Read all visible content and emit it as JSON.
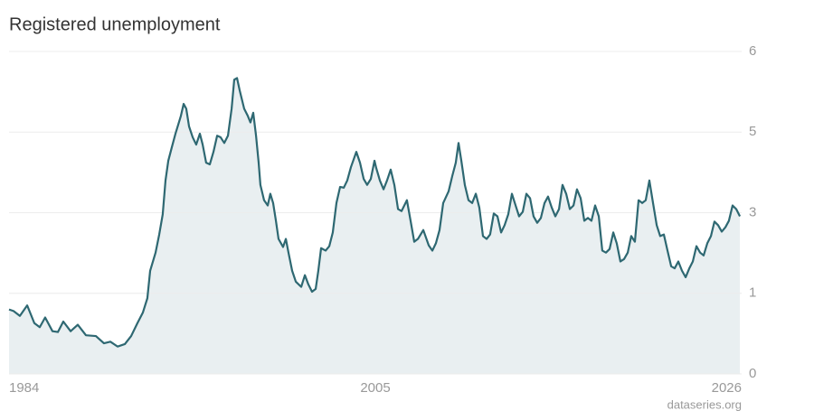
{
  "chart_data": {
    "type": "line",
    "title": "Registered unemployment",
    "source": "dataseries.org",
    "x": [
      1984.0,
      1984.26,
      1984.62,
      1985.04,
      1985.45,
      1985.76,
      1986.07,
      1986.49,
      1986.8,
      1987.11,
      1987.53,
      1987.94,
      1988.41,
      1988.98,
      1989.44,
      1989.81,
      1990.22,
      1990.64,
      1991.0,
      1991.36,
      1991.67,
      1991.93,
      1992.09,
      1992.4,
      1992.61,
      1992.81,
      1992.97,
      1993.13,
      1993.33,
      1993.54,
      1993.85,
      1994.01,
      1994.16,
      1994.32,
      1994.53,
      1994.73,
      1994.94,
      1995.1,
      1995.3,
      1995.51,
      1995.72,
      1995.93,
      1996.13,
      1996.34,
      1996.55,
      1996.76,
      1996.91,
      1997.07,
      1997.22,
      1997.48,
      1997.69,
      1997.84,
      1998.0,
      1998.16,
      1998.31,
      1998.41,
      1998.62,
      1998.83,
      1998.98,
      1999.14,
      1999.3,
      1999.45,
      1999.71,
      1999.87,
      2000.02,
      2000.23,
      2000.44,
      2000.75,
      2000.96,
      2001.16,
      2001.37,
      2001.58,
      2001.73,
      2001.89,
      2002.15,
      2002.36,
      2002.56,
      2002.77,
      2002.98,
      2003.19,
      2003.39,
      2003.6,
      2003.91,
      2004.12,
      2004.33,
      2004.53,
      2004.74,
      2004.95,
      2005.05,
      2005.26,
      2005.47,
      2005.67,
      2005.88,
      2006.09,
      2006.3,
      2006.5,
      2006.81,
      2007.02,
      2007.23,
      2007.44,
      2007.75,
      2008.06,
      2008.27,
      2008.47,
      2008.68,
      2008.89,
      2009.2,
      2009.41,
      2009.61,
      2009.77,
      2009.93,
      2010.13,
      2010.34,
      2010.55,
      2010.76,
      2010.96,
      2011.17,
      2011.38,
      2011.58,
      2011.79,
      2012.0,
      2012.21,
      2012.41,
      2012.62,
      2012.83,
      2013.04,
      2013.24,
      2013.45,
      2013.66,
      2013.87,
      2014.07,
      2014.28,
      2014.49,
      2014.7,
      2014.9,
      2015.11,
      2015.32,
      2015.53,
      2015.73,
      2015.94,
      2016.15,
      2016.36,
      2016.56,
      2016.77,
      2016.98,
      2017.19,
      2017.39,
      2017.6,
      2017.81,
      2018.01,
      2018.22,
      2018.43,
      2018.64,
      2018.84,
      2019.05,
      2019.26,
      2019.47,
      2019.67,
      2019.88,
      2020.09,
      2020.3,
      2020.5,
      2020.71,
      2020.92,
      2021.13,
      2021.33,
      2021.54,
      2021.75,
      2021.96,
      2022.16,
      2022.37,
      2022.58,
      2022.79,
      2022.99,
      2023.2,
      2023.41,
      2023.62,
      2023.82,
      2024.03,
      2024.24,
      2024.44,
      2024.65,
      2024.86,
      2025.07,
      2025.27,
      2025.48,
      2025.69,
      2025.9
    ],
    "series": [
      {
        "color": "#2e6872",
        "fill": "#e9eff1",
        "values": [
          0.8,
          0.78,
          0.72,
          0.85,
          0.63,
          0.58,
          0.7,
          0.53,
          0.52,
          0.65,
          0.53,
          0.61,
          0.48,
          0.47,
          0.38,
          0.4,
          0.34,
          0.37,
          0.47,
          0.63,
          0.76,
          0.94,
          1.56,
          2.01,
          2.46,
          2.96,
          3.8,
          4.29,
          4.62,
          4.96,
          5.2,
          5.35,
          5.29,
          5.07,
          4.87,
          4.69,
          4.96,
          4.69,
          4.24,
          4.2,
          4.51,
          4.91,
          4.87,
          4.73,
          4.91,
          5.29,
          5.65,
          5.67,
          5.52,
          5.29,
          5.2,
          5.12,
          5.24,
          4.91,
          4.24,
          3.69,
          3.31,
          3.18,
          3.47,
          3.24,
          2.8,
          2.35,
          2.15,
          2.35,
          2.01,
          1.56,
          1.29,
          1.16,
          1.45,
          1.22,
          1.04,
          1.11,
          1.56,
          2.12,
          2.06,
          2.17,
          2.51,
          3.24,
          3.64,
          3.62,
          3.8,
          4.13,
          4.51,
          4.24,
          3.84,
          3.69,
          3.84,
          4.29,
          4.11,
          3.8,
          3.58,
          3.8,
          4.07,
          3.69,
          3.09,
          3.04,
          3.31,
          2.8,
          2.28,
          2.35,
          2.57,
          2.19,
          2.06,
          2.24,
          2.57,
          3.24,
          3.53,
          3.91,
          4.24,
          4.73,
          4.29,
          3.69,
          3.31,
          3.24,
          3.47,
          3.13,
          2.42,
          2.35,
          2.46,
          2.98,
          2.91,
          2.51,
          2.69,
          2.96,
          3.47,
          3.18,
          2.91,
          3.02,
          3.47,
          3.36,
          2.91,
          2.75,
          2.87,
          3.24,
          3.4,
          3.13,
          2.91,
          3.09,
          3.69,
          3.47,
          3.09,
          3.18,
          3.58,
          3.36,
          2.8,
          2.87,
          2.8,
          3.18,
          2.91,
          2.06,
          2.01,
          2.1,
          2.51,
          2.24,
          1.79,
          1.85,
          2.01,
          2.42,
          2.28,
          3.31,
          3.24,
          3.31,
          3.8,
          3.24,
          2.69,
          2.42,
          2.46,
          2.06,
          1.67,
          1.62,
          1.79,
          1.56,
          1.4,
          1.61,
          1.79,
          2.17,
          2.01,
          1.94,
          2.24,
          2.42,
          2.78,
          2.69,
          2.53,
          2.64,
          2.8,
          3.18,
          3.09,
          2.91
        ]
      }
    ],
    "xlim": [
      1984,
      2026
    ],
    "xticks": [
      1984,
      2005,
      2026
    ],
    "ylim": [
      0,
      6
    ],
    "yticks": [
      0,
      1,
      3,
      5,
      6
    ],
    "grid": true
  }
}
